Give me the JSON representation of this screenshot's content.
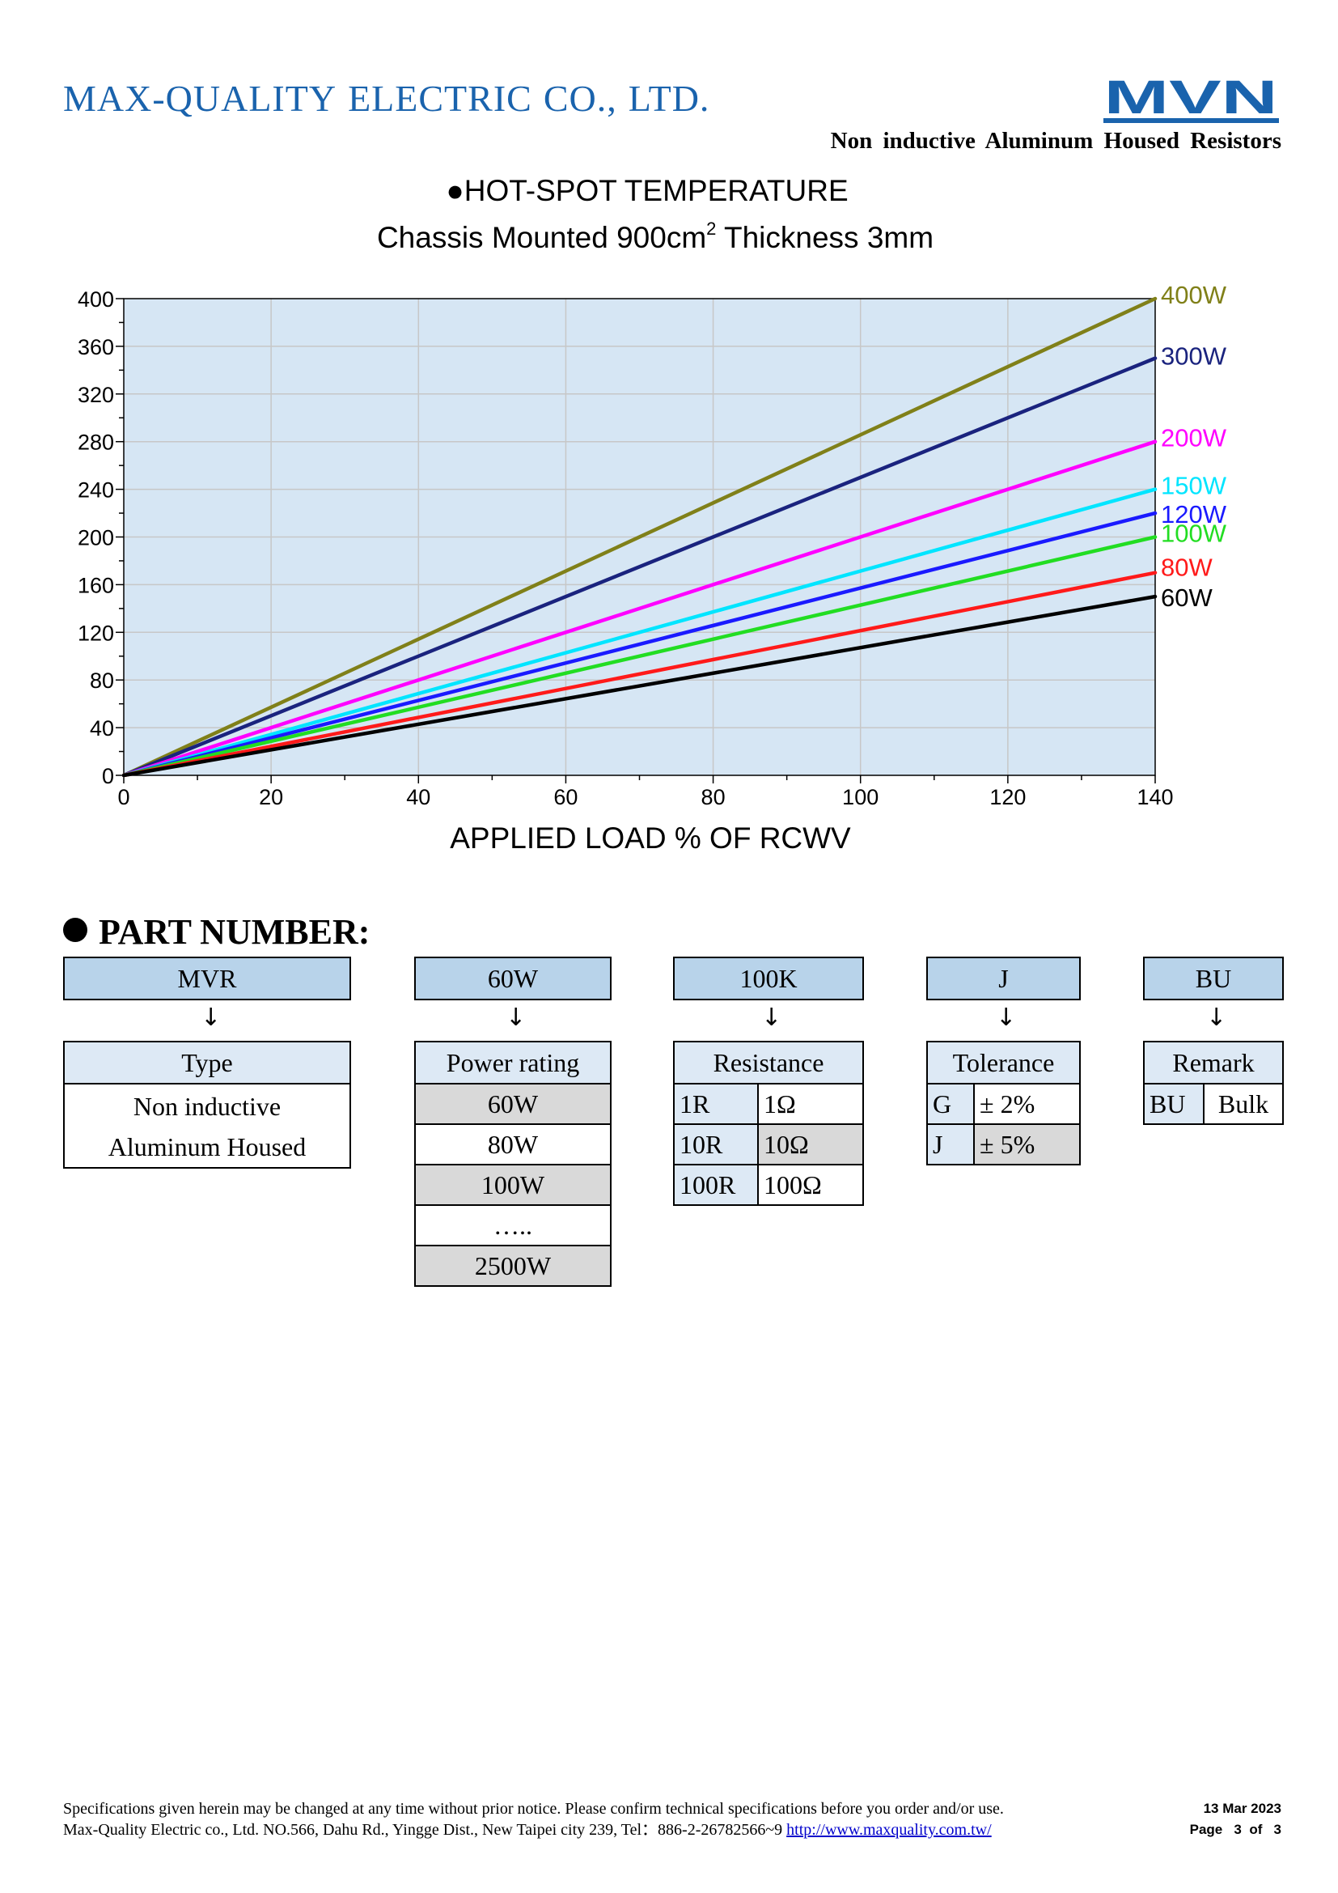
{
  "header": {
    "company_parts": [
      "MAX-QUALITY",
      "ELECTRIC",
      "CO.,",
      "LTD."
    ],
    "logo_text": "MVN",
    "subtitle": "Non inductive Aluminum Housed Resistors",
    "brand_color": "#1a63ad"
  },
  "chart_title": {
    "line1": "●HOT-SPOT TEMPERATURE",
    "line2_a": "Chassis Mounted 900cm",
    "line2_sup": "2",
    "line2_b": " Thickness 3mm"
  },
  "chart_data": {
    "type": "line",
    "title": "●HOT-SPOT TEMPERATURE Chassis Mounted 900cm2 Thickness 3mm",
    "xlabel": "APPLIED LOAD % OF RCWV",
    "ylabel": "",
    "xlim": [
      0,
      140
    ],
    "ylim": [
      0,
      400
    ],
    "xticks": [
      0,
      20,
      40,
      60,
      80,
      100,
      120,
      140
    ],
    "yticks": [
      0,
      40,
      80,
      120,
      160,
      200,
      240,
      280,
      320,
      360,
      400
    ],
    "grid": true,
    "background": "#d6e6f4",
    "series": [
      {
        "name": "400W",
        "color": "#808019",
        "x": [
          0,
          140
        ],
        "y": [
          0,
          400
        ]
      },
      {
        "name": "300W",
        "color": "#1a237e",
        "x": [
          0,
          140
        ],
        "y": [
          0,
          350
        ]
      },
      {
        "name": "200W",
        "color": "#ff00ff",
        "x": [
          0,
          140
        ],
        "y": [
          0,
          280
        ]
      },
      {
        "name": "150W",
        "color": "#00e5ff",
        "x": [
          0,
          140
        ],
        "y": [
          0,
          240
        ]
      },
      {
        "name": "120W",
        "color": "#1a1aff",
        "x": [
          0,
          140
        ],
        "y": [
          0,
          220
        ]
      },
      {
        "name": "100W",
        "color": "#22dd22",
        "x": [
          0,
          140
        ],
        "y": [
          0,
          200
        ]
      },
      {
        "name": "80W",
        "color": "#ff1a1a",
        "x": [
          0,
          140
        ],
        "y": [
          0,
          170
        ]
      },
      {
        "name": "60W",
        "color": "#000000",
        "x": [
          0,
          140
        ],
        "y": [
          0,
          150
        ]
      }
    ]
  },
  "part_number": {
    "heading": "PART NUMBER:",
    "codes": [
      "MVR",
      "60W",
      "100K",
      "J",
      "BU"
    ],
    "arrow": "↓",
    "type": {
      "header": "Type",
      "line1": "Non inductive",
      "line2": "Aluminum Housed"
    },
    "power": {
      "header": "Power rating",
      "rows": [
        "60W",
        "80W",
        "100W",
        "…..",
        "2500W"
      ]
    },
    "resistance": {
      "header": "Resistance",
      "rows": [
        [
          "1R",
          "1Ω"
        ],
        [
          "10R",
          "10Ω"
        ],
        [
          "100R",
          "100Ω"
        ]
      ]
    },
    "tolerance": {
      "header": "Tolerance",
      "rows": [
        [
          "G",
          "± 2%"
        ],
        [
          "J",
          "± 5%"
        ]
      ]
    },
    "remark": {
      "header": "Remark",
      "rows": [
        [
          "BU",
          "Bulk"
        ]
      ]
    }
  },
  "footer": {
    "line1": "Specifications given herein may be changed at any time without prior notice. Please confirm technical specifications before you order and/or use.",
    "line2": "Max-Quality Electric co., Ltd. NO.566, Dahu Rd., Yingge Dist., New Taipei city 239, Tel：886-2-26782566~9 ",
    "link": "http://www.maxquality.com.tw/",
    "date": "13 Mar 2023",
    "page": "Page   3  of   3"
  }
}
